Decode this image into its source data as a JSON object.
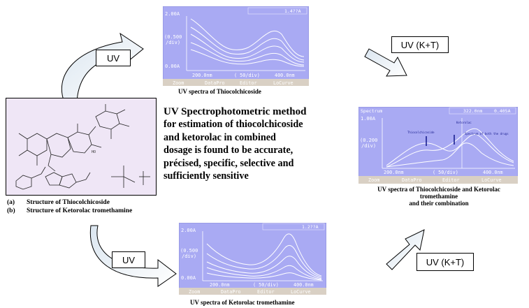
{
  "main_text": {
    "line1": "UV Spectrophotometric method",
    "line2": "for estimation of thiocolchicoside",
    "line3": "and ketorolac in combined",
    "line4": "dosage is found to be accurate,",
    "line5": "précised, specific, selective and",
    "line6": "sufficiently sensitive"
  },
  "arrow_labels": {
    "top_left": "UV",
    "top_right": "UV (K+T)",
    "bottom_left": "UV",
    "bottom_right": "UV (K+T)"
  },
  "structure_panel": {
    "legend_a_tag": "(a)",
    "legend_a": "Structure of Thiocolchicoside",
    "legend_b_tag": "(b)",
    "legend_b": "Structure of Ketorolac tromethamine",
    "chem_label": "HO"
  },
  "spectra": {
    "top": {
      "caption": "UV spectra of Thiocolchicoside",
      "y_top": "2.00A",
      "y_div1": "(0.500",
      "y_div2": "/div)",
      "y_bottom": "0.00A",
      "x_left": "200.0nm",
      "x_div": "( 50/div)",
      "x_right": "400.0nm",
      "header_right": "1.4??A",
      "buttons": [
        "Zoom",
        "DataPro",
        "Editor",
        "LoCurve"
      ]
    },
    "right": {
      "caption_line1": "UV spectra of Thiocolchicoside and Ketorolac",
      "caption_line2": "tromethamine",
      "caption_line3": "and their combination",
      "header_left": "Spectrum",
      "header_mid": "322.0nm",
      "header_right": "0.405A",
      "y_top": "1.00A",
      "y_div1": "(0.200",
      "y_div2": "/div)",
      "x_left": "200.0nm",
      "x_div": "( 50/div)",
      "x_right": "400.0nm",
      "annot1": "Thiocolchicoside",
      "annot2": "Ketorolac",
      "annot3": "Spectrum of both the drugs",
      "buttons": [
        "Zoom",
        "DataPro",
        "Editor",
        "LoCurve"
      ]
    },
    "bottom": {
      "caption": "UV spectra of Ketorolac tromethamine",
      "header_right": "1.2??A",
      "y_top": "2.00A",
      "y_div1": "(0.500",
      "y_div2": "/div)",
      "y_bottom": "0.00A",
      "x_left": "200.0nm",
      "x_div": "( 50/div)",
      "x_right": "400.0nm",
      "buttons": [
        "Zoom",
        "DataPro",
        "Editor",
        "LoCurve"
      ]
    }
  },
  "colors": {
    "screen_bg": "#a9aaf3",
    "curve": "#ffffff",
    "button_bar": "#d9d0c4",
    "structure_bg": "#efe6f6",
    "arrow_fill": "#ffffff",
    "arrow_shade": "#c8d8e8"
  }
}
